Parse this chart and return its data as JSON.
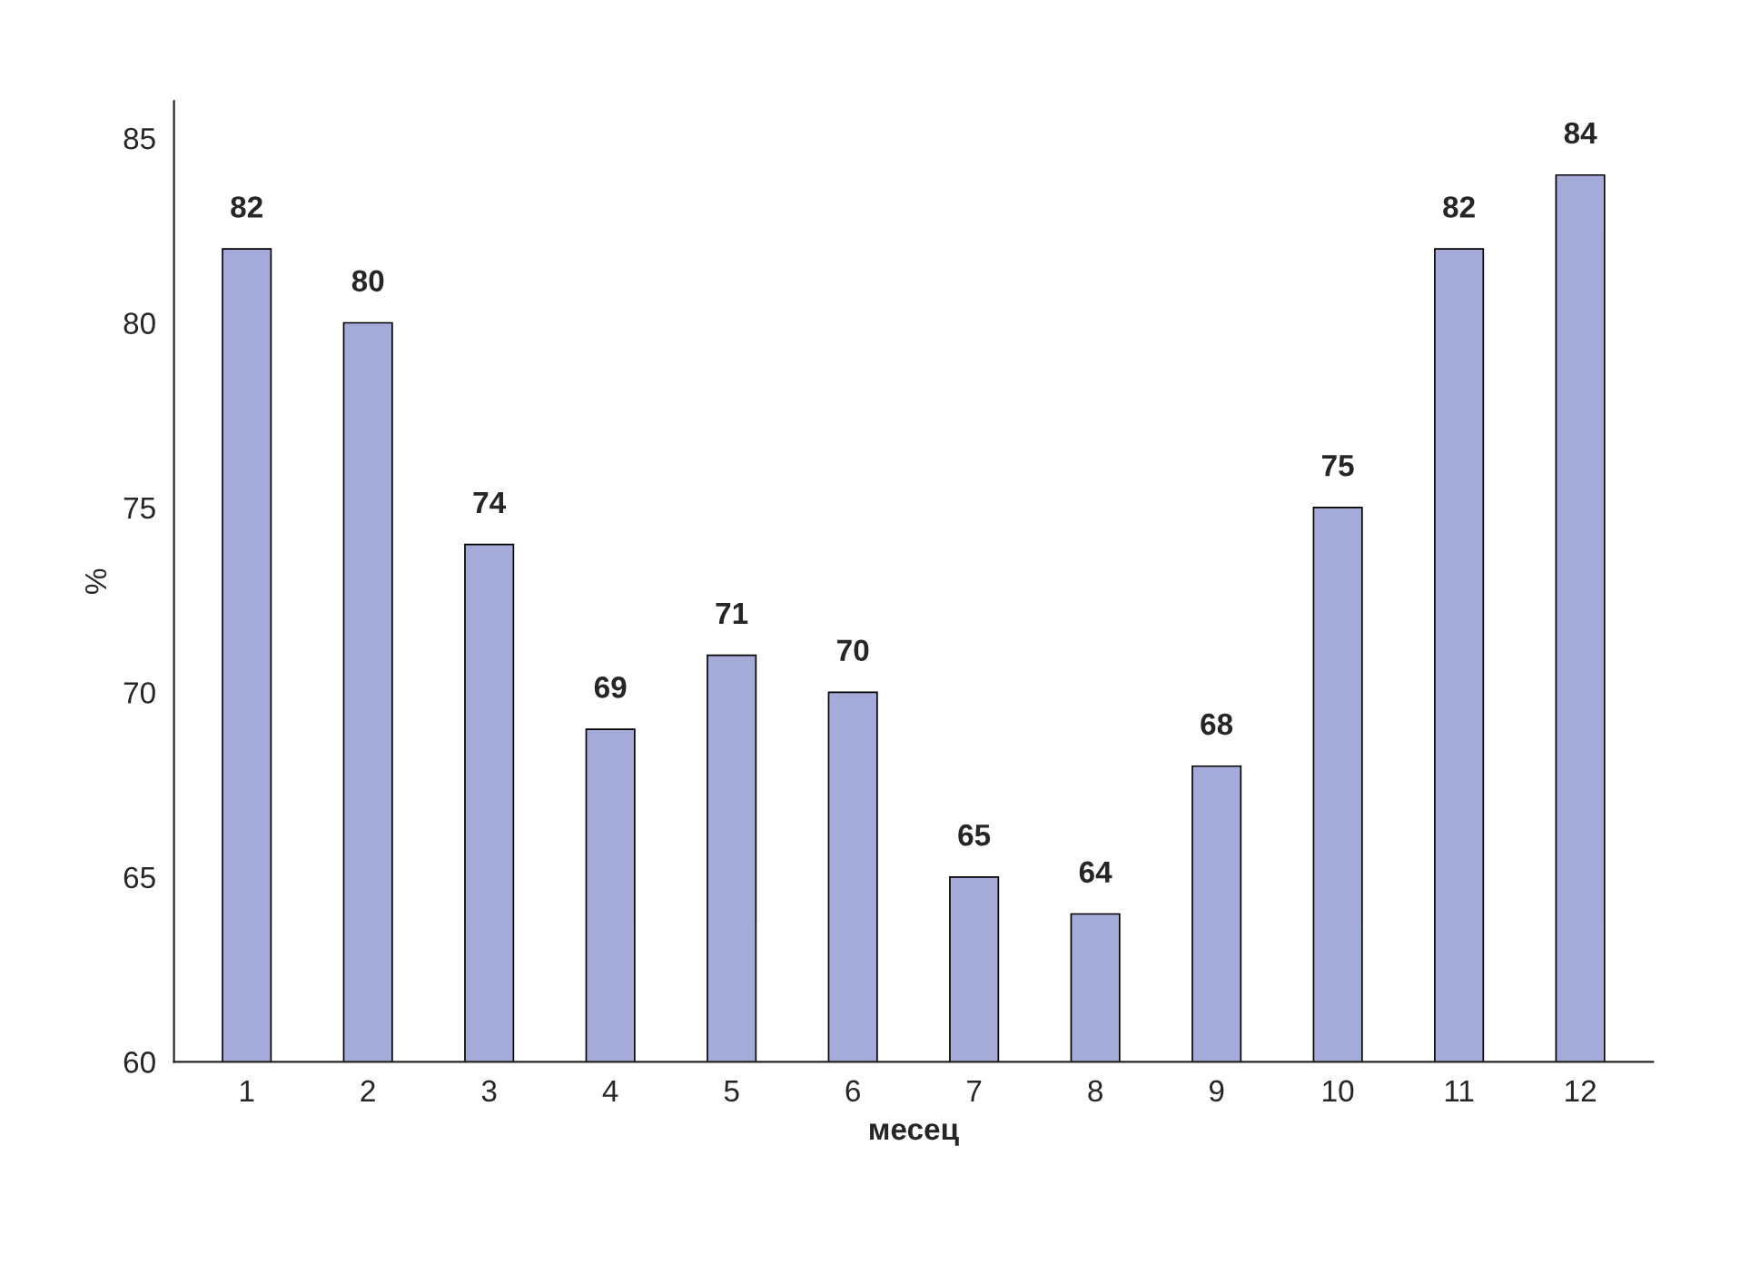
{
  "chart_data": {
    "type": "bar",
    "xlabel": "месец",
    "ylabel": "%",
    "categories": [
      "1",
      "2",
      "3",
      "4",
      "5",
      "6",
      "7",
      "8",
      "9",
      "10",
      "11",
      "12"
    ],
    "values": [
      82,
      80,
      74,
      69,
      71,
      70,
      65,
      64,
      68,
      75,
      82,
      84
    ],
    "color": "#a4abd8",
    "ylim": [
      60,
      86
    ],
    "yticks": [
      60,
      65,
      70,
      75,
      80,
      85
    ],
    "data_labels": true,
    "grid": false,
    "legend": false
  }
}
